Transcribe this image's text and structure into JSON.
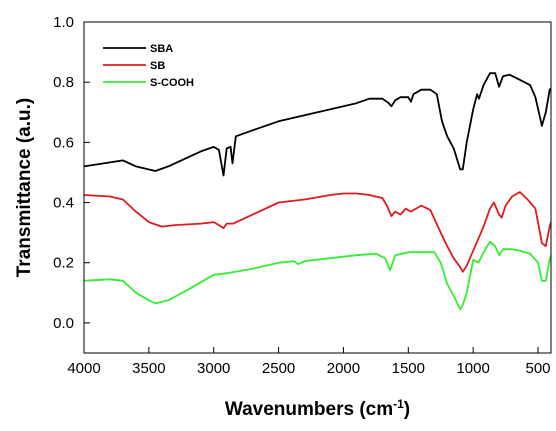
{
  "chart_data": {
    "type": "line",
    "xlabel": "Wavenumbers (cm",
    "xlabel_superscript": "-1",
    "xlabel_suffix": ")",
    "ylabel": "Transmittance (a.u.)",
    "xlim": [
      4000,
      400
    ],
    "ylim": [
      -0.1,
      1.0
    ],
    "x_ticks": [
      4000,
      3500,
      3000,
      2500,
      2000,
      1500,
      1000,
      500
    ],
    "y_ticks": [
      0.0,
      0.2,
      0.4,
      0.6,
      0.8,
      1.0
    ],
    "x_tick_labels": [
      "4000",
      "3500",
      "3000",
      "2500",
      "2000",
      "1500",
      "1000",
      "500"
    ],
    "y_tick_labels": [
      "0.0",
      "0.2",
      "0.4",
      "0.6",
      "0.8",
      "1.0"
    ],
    "grid": false,
    "legend_position": "top-left",
    "series": [
      {
        "name": "SBA",
        "color": "#000000",
        "points": [
          [
            4000,
            0.52
          ],
          [
            3850,
            0.53
          ],
          [
            3700,
            0.54
          ],
          [
            3600,
            0.52
          ],
          [
            3450,
            0.505
          ],
          [
            3350,
            0.52
          ],
          [
            3200,
            0.55
          ],
          [
            3100,
            0.57
          ],
          [
            3000,
            0.585
          ],
          [
            2960,
            0.575
          ],
          [
            2925,
            0.49
          ],
          [
            2900,
            0.58
          ],
          [
            2870,
            0.585
          ],
          [
            2855,
            0.53
          ],
          [
            2830,
            0.62
          ],
          [
            2700,
            0.64
          ],
          [
            2500,
            0.67
          ],
          [
            2300,
            0.69
          ],
          [
            2100,
            0.71
          ],
          [
            1900,
            0.73
          ],
          [
            1800,
            0.745
          ],
          [
            1700,
            0.745
          ],
          [
            1650,
            0.73
          ],
          [
            1630,
            0.72
          ],
          [
            1600,
            0.74
          ],
          [
            1560,
            0.75
          ],
          [
            1500,
            0.75
          ],
          [
            1480,
            0.735
          ],
          [
            1460,
            0.76
          ],
          [
            1400,
            0.775
          ],
          [
            1330,
            0.775
          ],
          [
            1280,
            0.76
          ],
          [
            1240,
            0.67
          ],
          [
            1200,
            0.62
          ],
          [
            1150,
            0.58
          ],
          [
            1100,
            0.51
          ],
          [
            1080,
            0.51
          ],
          [
            1050,
            0.6
          ],
          [
            1000,
            0.71
          ],
          [
            970,
            0.76
          ],
          [
            955,
            0.745
          ],
          [
            920,
            0.79
          ],
          [
            870,
            0.83
          ],
          [
            830,
            0.83
          ],
          [
            800,
            0.785
          ],
          [
            770,
            0.82
          ],
          [
            720,
            0.825
          ],
          [
            650,
            0.81
          ],
          [
            560,
            0.79
          ],
          [
            520,
            0.75
          ],
          [
            470,
            0.655
          ],
          [
            440,
            0.7
          ],
          [
            410,
            0.775
          ],
          [
            400,
            0.78
          ]
        ]
      },
      {
        "name": "SB",
        "color": "#e31a1c",
        "points": [
          [
            4000,
            0.425
          ],
          [
            3800,
            0.42
          ],
          [
            3700,
            0.41
          ],
          [
            3600,
            0.37
          ],
          [
            3500,
            0.335
          ],
          [
            3400,
            0.32
          ],
          [
            3300,
            0.325
          ],
          [
            3100,
            0.33
          ],
          [
            3000,
            0.335
          ],
          [
            2960,
            0.325
          ],
          [
            2925,
            0.315
          ],
          [
            2900,
            0.33
          ],
          [
            2850,
            0.33
          ],
          [
            2700,
            0.36
          ],
          [
            2500,
            0.4
          ],
          [
            2300,
            0.41
          ],
          [
            2100,
            0.425
          ],
          [
            2000,
            0.43
          ],
          [
            1900,
            0.43
          ],
          [
            1800,
            0.425
          ],
          [
            1700,
            0.415
          ],
          [
            1660,
            0.385
          ],
          [
            1630,
            0.355
          ],
          [
            1600,
            0.37
          ],
          [
            1560,
            0.36
          ],
          [
            1520,
            0.38
          ],
          [
            1480,
            0.37
          ],
          [
            1440,
            0.38
          ],
          [
            1400,
            0.39
          ],
          [
            1330,
            0.375
          ],
          [
            1250,
            0.3
          ],
          [
            1200,
            0.255
          ],
          [
            1150,
            0.215
          ],
          [
            1100,
            0.185
          ],
          [
            1080,
            0.17
          ],
          [
            1050,
            0.19
          ],
          [
            1000,
            0.24
          ],
          [
            960,
            0.28
          ],
          [
            920,
            0.32
          ],
          [
            870,
            0.38
          ],
          [
            840,
            0.4
          ],
          [
            800,
            0.36
          ],
          [
            780,
            0.35
          ],
          [
            750,
            0.39
          ],
          [
            700,
            0.42
          ],
          [
            640,
            0.435
          ],
          [
            580,
            0.41
          ],
          [
            520,
            0.38
          ],
          [
            470,
            0.265
          ],
          [
            440,
            0.255
          ],
          [
            410,
            0.32
          ],
          [
            400,
            0.335
          ]
        ]
      },
      {
        "name": "S-COOH",
        "color": "#33ee33",
        "points": [
          [
            4000,
            0.14
          ],
          [
            3800,
            0.145
          ],
          [
            3700,
            0.14
          ],
          [
            3600,
            0.1
          ],
          [
            3500,
            0.075
          ],
          [
            3450,
            0.065
          ],
          [
            3350,
            0.075
          ],
          [
            3200,
            0.11
          ],
          [
            3000,
            0.16
          ],
          [
            2900,
            0.165
          ],
          [
            2700,
            0.18
          ],
          [
            2500,
            0.2
          ],
          [
            2380,
            0.205
          ],
          [
            2350,
            0.195
          ],
          [
            2300,
            0.205
          ],
          [
            2100,
            0.215
          ],
          [
            1900,
            0.225
          ],
          [
            1750,
            0.23
          ],
          [
            1680,
            0.215
          ],
          [
            1640,
            0.175
          ],
          [
            1600,
            0.225
          ],
          [
            1500,
            0.235
          ],
          [
            1300,
            0.235
          ],
          [
            1250,
            0.2
          ],
          [
            1200,
            0.13
          ],
          [
            1150,
            0.09
          ],
          [
            1100,
            0.045
          ],
          [
            1080,
            0.06
          ],
          [
            1050,
            0.1
          ],
          [
            1000,
            0.21
          ],
          [
            960,
            0.2
          ],
          [
            900,
            0.25
          ],
          [
            870,
            0.27
          ],
          [
            830,
            0.255
          ],
          [
            800,
            0.225
          ],
          [
            770,
            0.245
          ],
          [
            700,
            0.245
          ],
          [
            640,
            0.24
          ],
          [
            560,
            0.23
          ],
          [
            500,
            0.2
          ],
          [
            470,
            0.14
          ],
          [
            440,
            0.14
          ],
          [
            410,
            0.21
          ],
          [
            400,
            0.225
          ]
        ]
      }
    ]
  }
}
